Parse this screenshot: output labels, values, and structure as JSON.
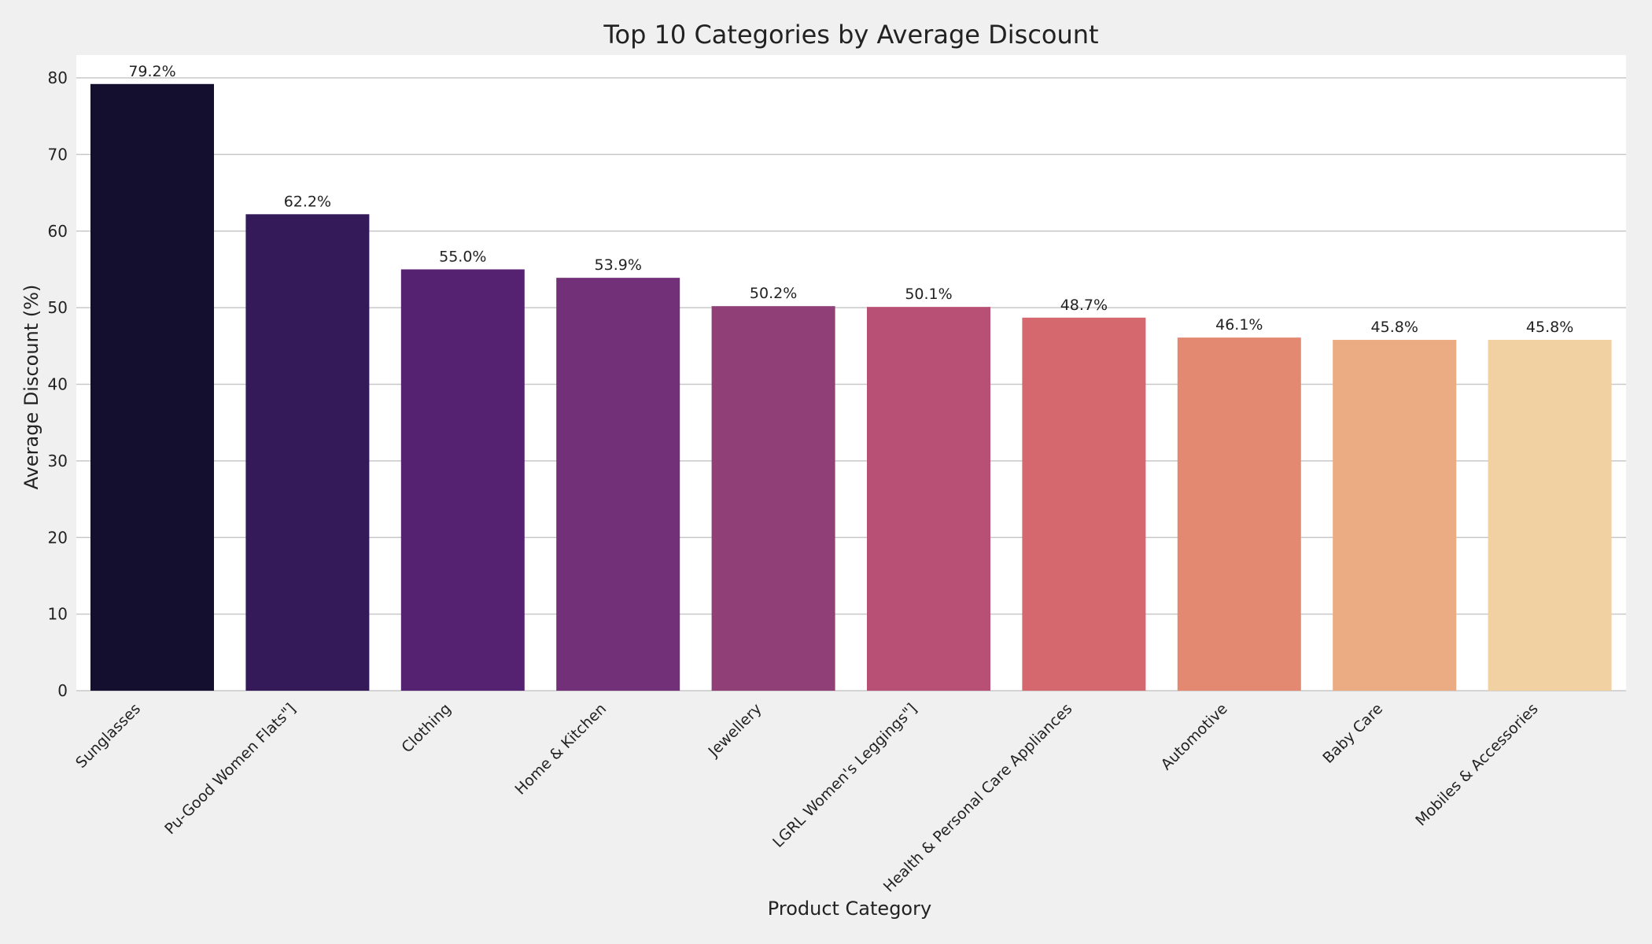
{
  "chart_data": {
    "type": "bar",
    "title": "Top 10 Categories by Average Discount",
    "xlabel": "Product Category",
    "ylabel": "Average Discount (%)",
    "categories": [
      "Sunglasses",
      "Pu-Good Women Flats\"]",
      "Clothing",
      "Home & Kitchen",
      "Jewellery",
      "LGRL Women's Leggings\"]",
      "Health & Personal Care Appliances",
      "Automotive",
      "Baby Care",
      "Mobiles & Accessories"
    ],
    "values": [
      79.2,
      62.2,
      55.0,
      53.9,
      50.2,
      50.1,
      48.7,
      46.1,
      45.8,
      45.8
    ],
    "data_labels": [
      "79.2%",
      "62.2%",
      "55.0%",
      "53.9%",
      "50.2%",
      "50.1%",
      "48.7%",
      "46.1%",
      "45.8%",
      "45.8%"
    ],
    "colors": [
      "#140f2e",
      "#341a59",
      "#552171",
      "#713077",
      "#913f77",
      "#b84f74",
      "#d5676f",
      "#e48971",
      "#ebac84",
      "#f1d0a1"
    ],
    "yticks": [
      0,
      10,
      20,
      30,
      40,
      50,
      60,
      70,
      80
    ],
    "ylim": [
      0,
      80
    ],
    "grid": "horizontal",
    "plot_background": "#ffffff",
    "figure_background": "#f0f0f0"
  }
}
